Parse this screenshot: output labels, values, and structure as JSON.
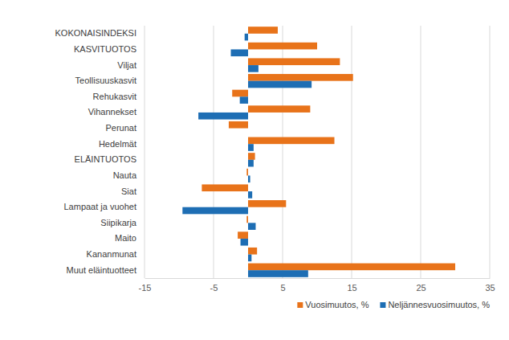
{
  "chart_data": {
    "type": "bar",
    "orientation": "horizontal",
    "categories": [
      "KOKONAISINDEKSI",
      "KASVITUOTOS",
      "Viljat",
      "Teollisuuskasvit",
      "Rehukasvit",
      "Vihannekset",
      "Perunat",
      "Hedelmät",
      "ELÄINTUOTOS",
      "Nauta",
      "Siat",
      "Lampaat ja vuohet",
      "Siipikarja",
      "Maito",
      "Kananmunat",
      "Muut eläintuotteet"
    ],
    "series": [
      {
        "name": "Vuosimuutos, %",
        "color": "#e8731a",
        "values": [
          4.3,
          10,
          13.3,
          15.2,
          -2.3,
          9,
          -2.8,
          12.5,
          1.0,
          -0.2,
          -6.7,
          5.5,
          -0.2,
          -1.5,
          1.3,
          30
        ]
      },
      {
        "name": "Neljännesvuosimuutos, %",
        "color": "#1e6eb4",
        "values": [
          -0.5,
          -2.5,
          1.5,
          9.2,
          -1.2,
          -7.2,
          0,
          0.8,
          0.8,
          0.3,
          0.6,
          -9.5,
          1.1,
          -1.1,
          0.5,
          8.7
        ]
      }
    ],
    "xlim": [
      -15,
      35
    ],
    "xticks": [
      -15,
      -5,
      5,
      15,
      25,
      35
    ],
    "grid": true,
    "legend": "bottom-right"
  }
}
